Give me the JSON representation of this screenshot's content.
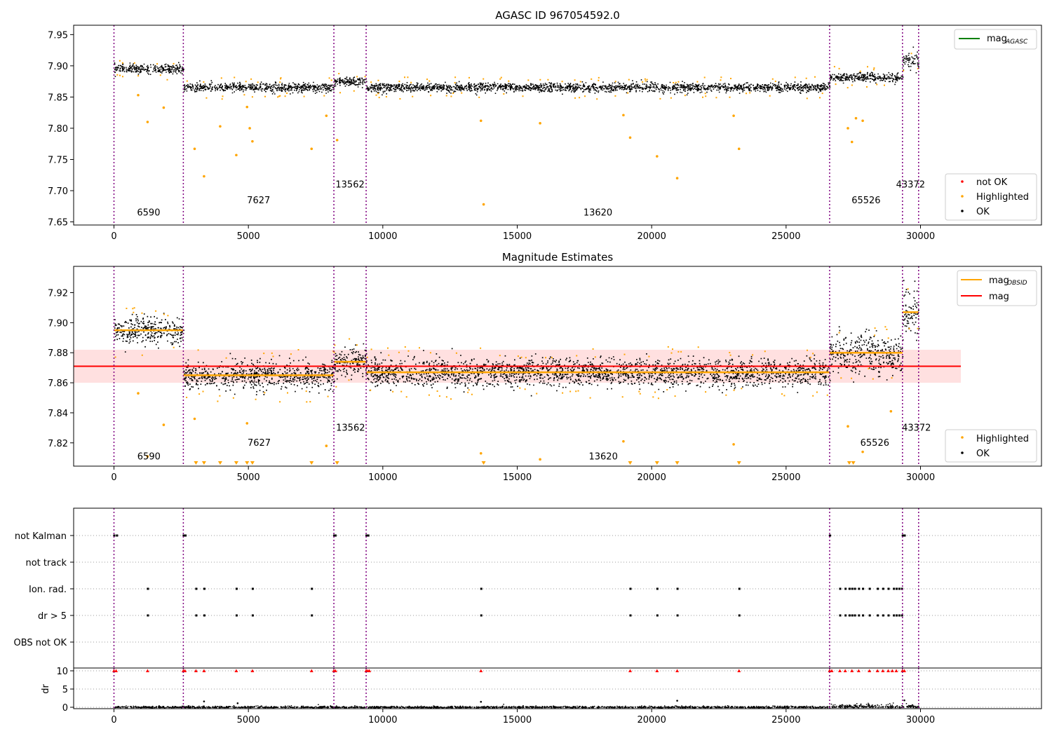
{
  "chart_data": [
    {
      "type": "scatter",
      "title": "AGASC ID 967054592.0",
      "xlim": [
        -1500,
        34500
      ],
      "ylim": [
        7.645,
        7.965
      ],
      "xticks": [
        0,
        5000,
        10000,
        15000,
        20000,
        25000,
        30000
      ],
      "yticks": [
        7.65,
        7.7,
        7.75,
        7.8,
        7.85,
        7.9,
        7.95
      ],
      "series": [
        {
          "name": "not OK",
          "color": "#ff0000",
          "values": []
        },
        {
          "name": "Highlighted",
          "color": "#ffa500"
        },
        {
          "name": "OK",
          "color": "#000000"
        }
      ],
      "mag_line_label": "mag",
      "mag_line_subscript": "AGASC",
      "mag_line_color": "#008000",
      "obsid_boundaries": [
        0,
        2580,
        8180,
        9380,
        26620,
        29330,
        29930
      ],
      "observations": [
        {
          "obsid": "6590",
          "start": 0,
          "end": 2580,
          "mag_level": 7.896,
          "label_y": 7.66
        },
        {
          "obsid": "7627",
          "start": 2580,
          "end": 8180,
          "mag_level": 7.866,
          "label_y": 7.68
        },
        {
          "obsid": "13562",
          "start": 8180,
          "end": 9380,
          "mag_level": 7.875,
          "label_y": 7.705
        },
        {
          "obsid": "13620",
          "start": 9380,
          "end": 26620,
          "mag_level": 7.866,
          "label_y": 7.66
        },
        {
          "obsid": "65526",
          "start": 26620,
          "end": 29330,
          "mag_level": 7.882,
          "label_y": 7.68
        },
        {
          "obsid": "43372",
          "start": 29330,
          "end": 29930,
          "mag_level": 7.908,
          "label_y": 7.705
        }
      ],
      "highlighted_outliers": [
        [
          900,
          7.853
        ],
        [
          1250,
          7.81
        ],
        [
          1850,
          7.833
        ],
        [
          3000,
          7.767
        ],
        [
          3350,
          7.723
        ],
        [
          3950,
          7.803
        ],
        [
          4550,
          7.757
        ],
        [
          4950,
          7.834
        ],
        [
          5050,
          7.8
        ],
        [
          5150,
          7.779
        ],
        [
          7350,
          7.767
        ],
        [
          7900,
          7.82
        ],
        [
          8300,
          7.781
        ],
        [
          13650,
          7.812
        ],
        [
          13750,
          7.678
        ],
        [
          15850,
          7.808
        ],
        [
          18950,
          7.821
        ],
        [
          19200,
          7.785
        ],
        [
          20200,
          7.755
        ],
        [
          20950,
          7.72
        ],
        [
          23250,
          7.767
        ],
        [
          27300,
          7.8
        ],
        [
          27450,
          7.778
        ],
        [
          27600,
          7.816
        ],
        [
          27850,
          7.812
        ],
        [
          23050,
          7.82
        ]
      ],
      "legend_position": "top-right / lower-right"
    },
    {
      "type": "scatter",
      "title": "Magnitude Estimates",
      "xlim": [
        -1500,
        34500
      ],
      "ylim": [
        7.8045,
        7.9375
      ],
      "xticks": [
        0,
        5000,
        10000,
        15000,
        20000,
        25000,
        30000
      ],
      "yticks": [
        7.82,
        7.84,
        7.86,
        7.88,
        7.9,
        7.92
      ],
      "mean_mag": 7.871,
      "mean_band": [
        7.86,
        7.882
      ],
      "mean_extent": [
        -1500,
        31500
      ],
      "obsid_mag_levels": [
        7.895,
        7.865,
        7.874,
        7.867,
        7.88,
        7.907
      ],
      "legend_lines": [
        {
          "label": "mag",
          "subscript": "OBSID",
          "color": "#ffa500"
        },
        {
          "label": "mag",
          "subscript": "",
          "color": "#ff0000"
        }
      ],
      "legend_points": [
        {
          "label": "Highlighted",
          "color": "#ffa500"
        },
        {
          "label": "OK",
          "color": "#000000"
        }
      ],
      "triangle_markers_x": [
        3050,
        3350,
        3950,
        4550,
        4950,
        5150,
        7350,
        8300,
        13750,
        19200,
        20200,
        20950,
        23250,
        27350,
        27500
      ],
      "outliers": [
        [
          900,
          7.853
        ],
        [
          1250,
          7.811
        ],
        [
          1850,
          7.832
        ],
        [
          3000,
          7.836
        ],
        [
          4950,
          7.833
        ],
        [
          7900,
          7.818
        ],
        [
          13650,
          7.813
        ],
        [
          15850,
          7.809
        ],
        [
          18950,
          7.821
        ],
        [
          23050,
          7.819
        ],
        [
          27850,
          7.814
        ],
        [
          27300,
          7.831
        ],
        [
          28900,
          7.841
        ]
      ],
      "obsid_labels": [
        {
          "obsid": "6590",
          "x": 1300,
          "y": 7.809
        },
        {
          "obsid": "7627",
          "x": 5400,
          "y": 7.818
        },
        {
          "obsid": "13562",
          "x": 8800,
          "y": 7.828
        },
        {
          "obsid": "13620",
          "x": 18200,
          "y": 7.809
        },
        {
          "obsid": "65526",
          "x": 28300,
          "y": 7.818
        },
        {
          "obsid": "43372",
          "x": 29850,
          "y": 7.828
        }
      ]
    },
    {
      "type": "scatter",
      "title": "",
      "xlim": [
        -1500,
        34500
      ],
      "xticks": [
        0,
        5000,
        10000,
        15000,
        20000,
        25000,
        30000
      ],
      "flag_rows": [
        "not Kalman",
        "not track",
        "Ion. rad.",
        "dr > 5",
        "OBS not OK"
      ],
      "flag_points": {
        "not Kalman": [
          0,
          100,
          2580,
          2650,
          8180,
          8230,
          9380,
          9450,
          26620,
          29330,
          29400
        ],
        "not track": [],
        "Ion. rad.": [
          1250,
          3050,
          3350,
          4550,
          5150,
          7350,
          13650,
          19200,
          20200,
          20950,
          23250,
          27000,
          27200,
          27350,
          27450,
          27550,
          27700,
          27850,
          28100,
          28400,
          28600,
          28800,
          29000,
          29100,
          29200,
          29300
        ],
        "dr > 5": [
          1250,
          3050,
          3350,
          4550,
          5150,
          7350,
          13650,
          19200,
          20200,
          20950,
          23250,
          27000,
          27200,
          27350,
          27450,
          27550,
          27700,
          27850,
          28100,
          28400,
          28600,
          28800,
          29000,
          29100,
          29200,
          29300
        ],
        "OBS not OK": []
      },
      "dr_ylabel": "dr",
      "dr_yticks": [
        0,
        5,
        10
      ],
      "dr_triangles_x": [
        0,
        80,
        1250,
        2580,
        2640,
        3050,
        3350,
        4550,
        5150,
        7350,
        8180,
        8240,
        9380,
        9440,
        9500,
        13650,
        19200,
        20200,
        20950,
        23250,
        26620,
        26700,
        27000,
        27200,
        27450,
        27700,
        28100,
        28400,
        28600,
        28800,
        28950,
        29100,
        29330,
        29400
      ],
      "dr_spikes": [
        [
          3350,
          1.6
        ],
        [
          4600,
          1.1
        ],
        [
          13650,
          1.5
        ],
        [
          20950,
          1.8
        ],
        [
          29400,
          1.9
        ]
      ]
    }
  ]
}
